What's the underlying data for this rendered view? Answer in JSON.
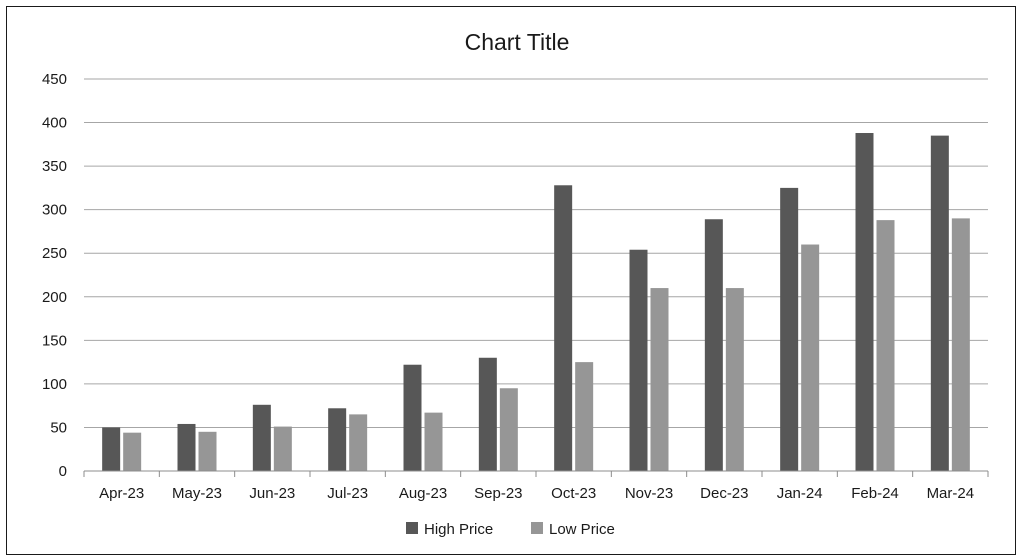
{
  "chart_data": {
    "type": "bar",
    "title": "Chart Title",
    "xlabel": "",
    "ylabel": "",
    "ylim": [
      0,
      450
    ],
    "yticks": [
      0,
      50,
      100,
      150,
      200,
      250,
      300,
      350,
      400,
      450
    ],
    "grid": true,
    "legend_position": "bottom",
    "categories": [
      "Apr-23",
      "May-23",
      "Jun-23",
      "Jul-23",
      "Aug-23",
      "Sep-23",
      "Oct-23",
      "Nov-23",
      "Dec-23",
      "Jan-24",
      "Feb-24",
      "Mar-24"
    ],
    "series": [
      {
        "name": "High Price",
        "color": "#575757",
        "values": [
          50,
          54,
          76,
          72,
          122,
          130,
          328,
          254,
          289,
          325,
          388,
          385
        ]
      },
      {
        "name": "Low Price",
        "color": "#969696",
        "values": [
          44,
          45,
          51,
          65,
          67,
          95,
          125,
          210,
          210,
          260,
          288,
          290
        ]
      }
    ]
  }
}
